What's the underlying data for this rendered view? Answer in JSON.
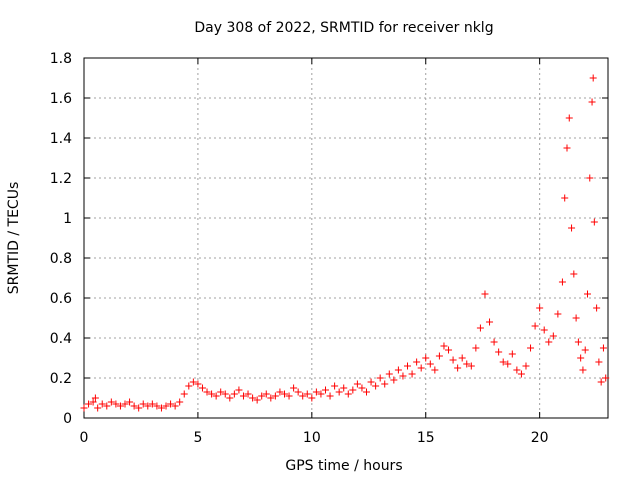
{
  "chart_data": {
    "type": "scatter",
    "title": "Day 308 of 2022, SRMTID for receiver nklg",
    "xlabel": "GPS time / hours",
    "ylabel": "SRMTID / TECUs",
    "xlim": [
      0,
      23
    ],
    "ylim": [
      0,
      1.8
    ],
    "xticks": [
      0,
      5,
      10,
      15,
      20
    ],
    "xtick_labels": [
      "0",
      "5",
      "10",
      "15",
      "20"
    ],
    "yticks": [
      0,
      0.2,
      0.4,
      0.6,
      0.8,
      1,
      1.2,
      1.4,
      1.6,
      1.8
    ],
    "ytick_labels": [
      "0",
      "0.2",
      "0.4",
      "0.6",
      "0.8",
      "1",
      "1.2",
      "1.4",
      "1.6",
      "1.8"
    ],
    "grid": true,
    "marker": "+",
    "series_color": "#ff0000",
    "series": [
      {
        "name": "SRMTID",
        "points": [
          [
            0.0,
            0.05
          ],
          [
            0.2,
            0.07
          ],
          [
            0.4,
            0.08
          ],
          [
            0.5,
            0.1
          ],
          [
            0.6,
            0.05
          ],
          [
            0.8,
            0.07
          ],
          [
            1.0,
            0.06
          ],
          [
            1.2,
            0.08
          ],
          [
            1.4,
            0.07
          ],
          [
            1.6,
            0.06
          ],
          [
            1.8,
            0.07
          ],
          [
            2.0,
            0.08
          ],
          [
            2.2,
            0.06
          ],
          [
            2.4,
            0.05
          ],
          [
            2.6,
            0.07
          ],
          [
            2.8,
            0.06
          ],
          [
            3.0,
            0.07
          ],
          [
            3.2,
            0.06
          ],
          [
            3.4,
            0.05
          ],
          [
            3.6,
            0.06
          ],
          [
            3.8,
            0.07
          ],
          [
            4.0,
            0.06
          ],
          [
            4.2,
            0.08
          ],
          [
            4.4,
            0.12
          ],
          [
            4.6,
            0.16
          ],
          [
            4.8,
            0.18
          ],
          [
            5.0,
            0.17
          ],
          [
            5.2,
            0.15
          ],
          [
            5.4,
            0.13
          ],
          [
            5.6,
            0.12
          ],
          [
            5.8,
            0.11
          ],
          [
            6.0,
            0.13
          ],
          [
            6.2,
            0.12
          ],
          [
            6.4,
            0.1
          ],
          [
            6.6,
            0.12
          ],
          [
            6.8,
            0.14
          ],
          [
            7.0,
            0.11
          ],
          [
            7.2,
            0.12
          ],
          [
            7.4,
            0.1
          ],
          [
            7.6,
            0.09
          ],
          [
            7.8,
            0.11
          ],
          [
            8.0,
            0.12
          ],
          [
            8.2,
            0.1
          ],
          [
            8.4,
            0.11
          ],
          [
            8.6,
            0.13
          ],
          [
            8.8,
            0.12
          ],
          [
            9.0,
            0.11
          ],
          [
            9.2,
            0.15
          ],
          [
            9.4,
            0.13
          ],
          [
            9.6,
            0.11
          ],
          [
            9.8,
            0.12
          ],
          [
            10.0,
            0.1
          ],
          [
            10.2,
            0.13
          ],
          [
            10.4,
            0.12
          ],
          [
            10.6,
            0.14
          ],
          [
            10.8,
            0.11
          ],
          [
            11.0,
            0.16
          ],
          [
            11.2,
            0.13
          ],
          [
            11.4,
            0.15
          ],
          [
            11.6,
            0.12
          ],
          [
            11.8,
            0.14
          ],
          [
            12.0,
            0.17
          ],
          [
            12.2,
            0.15
          ],
          [
            12.4,
            0.13
          ],
          [
            12.6,
            0.18
          ],
          [
            12.8,
            0.16
          ],
          [
            13.0,
            0.2
          ],
          [
            13.2,
            0.17
          ],
          [
            13.4,
            0.22
          ],
          [
            13.6,
            0.19
          ],
          [
            13.8,
            0.24
          ],
          [
            14.0,
            0.21
          ],
          [
            14.2,
            0.26
          ],
          [
            14.4,
            0.22
          ],
          [
            14.6,
            0.28
          ],
          [
            14.8,
            0.25
          ],
          [
            15.0,
            0.3
          ],
          [
            15.2,
            0.27
          ],
          [
            15.4,
            0.24
          ],
          [
            15.6,
            0.31
          ],
          [
            15.8,
            0.36
          ],
          [
            16.0,
            0.34
          ],
          [
            16.2,
            0.29
          ],
          [
            16.4,
            0.25
          ],
          [
            16.6,
            0.3
          ],
          [
            16.8,
            0.27
          ],
          [
            17.0,
            0.26
          ],
          [
            17.2,
            0.35
          ],
          [
            17.4,
            0.45
          ],
          [
            17.6,
            0.62
          ],
          [
            17.8,
            0.48
          ],
          [
            18.0,
            0.38
          ],
          [
            18.2,
            0.33
          ],
          [
            18.4,
            0.28
          ],
          [
            18.6,
            0.27
          ],
          [
            18.8,
            0.32
          ],
          [
            19.0,
            0.24
          ],
          [
            19.2,
            0.22
          ],
          [
            19.4,
            0.26
          ],
          [
            19.6,
            0.35
          ],
          [
            19.8,
            0.46
          ],
          [
            20.0,
            0.55
          ],
          [
            20.2,
            0.44
          ],
          [
            20.4,
            0.38
          ],
          [
            20.6,
            0.41
          ],
          [
            20.8,
            0.52
          ],
          [
            21.0,
            0.68
          ],
          [
            21.1,
            1.1
          ],
          [
            21.2,
            1.35
          ],
          [
            21.3,
            1.5
          ],
          [
            21.4,
            0.95
          ],
          [
            21.5,
            0.72
          ],
          [
            21.6,
            0.5
          ],
          [
            21.7,
            0.38
          ],
          [
            21.8,
            0.3
          ],
          [
            21.9,
            0.24
          ],
          [
            22.0,
            0.34
          ],
          [
            22.1,
            0.62
          ],
          [
            22.2,
            1.2
          ],
          [
            22.3,
            1.58
          ],
          [
            22.35,
            1.7
          ],
          [
            22.4,
            0.98
          ],
          [
            22.5,
            0.55
          ],
          [
            22.6,
            0.28
          ],
          [
            22.7,
            0.18
          ],
          [
            22.8,
            0.35
          ],
          [
            22.9,
            0.2
          ]
        ]
      }
    ]
  }
}
